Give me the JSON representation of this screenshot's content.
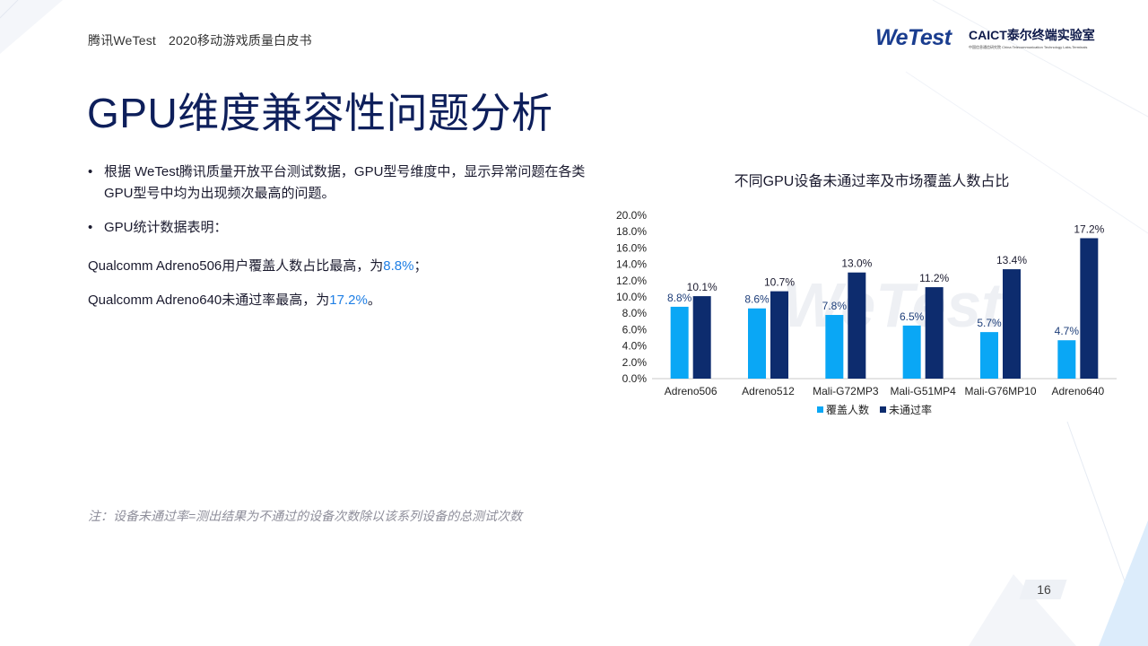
{
  "header": {
    "left_title": "腾讯WeTest",
    "left_subtitle": "2020移动游戏质量白皮书",
    "logo_wetest": "WeTest",
    "logo_caict_main": "CAICT",
    "logo_caict_cn": "泰尔终端实验室",
    "logo_caict_sub": "中国信息通信研究院 China Telecommunication Technology Labs-Terminals"
  },
  "page_title": "GPU维度兼容性问题分析",
  "bullets": [
    "根据 WeTest腾讯质量开放平台测试数据，GPU型号维度中，显示异常问题在各类GPU型号中均为出现频次最高的问题。",
    "GPU统计数据表明："
  ],
  "stats": [
    {
      "prefix": "Qualcomm Adreno506用户覆盖人数占比最高，为",
      "value": "8.8%",
      "suffix": "；"
    },
    {
      "prefix": "Qualcomm Adreno640未通过率最高，为",
      "value": "17.2%",
      "suffix": "。"
    }
  ],
  "note": "注：设备未通过率=测出结果为不通过的设备次数除以该系列设备的总测试次数",
  "page_number": "16",
  "colors": {
    "title": "#0e1f5b",
    "highlight": "#1f7fe5",
    "series_coverage": "#0aa7f5",
    "series_fail": "#0d2c6e",
    "watermark": "#eef0f4"
  },
  "chart_data": {
    "type": "bar",
    "title": "不同GPU设备未通过率及市场覆盖人数占比",
    "watermark": "WeTest",
    "categories": [
      "Adreno506",
      "Adreno512",
      "Mali-G72MP3",
      "Mali-G51MP4",
      "Mali-G76MP10",
      "Adreno640"
    ],
    "series": [
      {
        "name": "覆盖人数",
        "values": [
          8.8,
          8.6,
          7.8,
          6.5,
          5.7,
          4.7
        ],
        "labels": [
          "8.8%",
          "8.6%",
          "7.8%",
          "6.5%",
          "5.7%",
          "4.7%"
        ]
      },
      {
        "name": "未通过率",
        "values": [
          10.1,
          10.7,
          13.0,
          11.2,
          13.4,
          17.2
        ],
        "labels": [
          "10.1%",
          "10.7%",
          "13.0%",
          "11.2%",
          "13.4%",
          "17.2%"
        ]
      }
    ],
    "ylim": [
      0,
      20
    ],
    "yticks": [
      0,
      2,
      4,
      6,
      8,
      10,
      12,
      14,
      16,
      18,
      20
    ],
    "ytick_labels": [
      "0.0%",
      "2.0%",
      "4.0%",
      "6.0%",
      "8.0%",
      "10.0%",
      "12.0%",
      "14.0%",
      "16.0%",
      "18.0%",
      "20.0%"
    ],
    "xlabel": "",
    "ylabel": "",
    "grid": false,
    "legend": "bottom"
  }
}
